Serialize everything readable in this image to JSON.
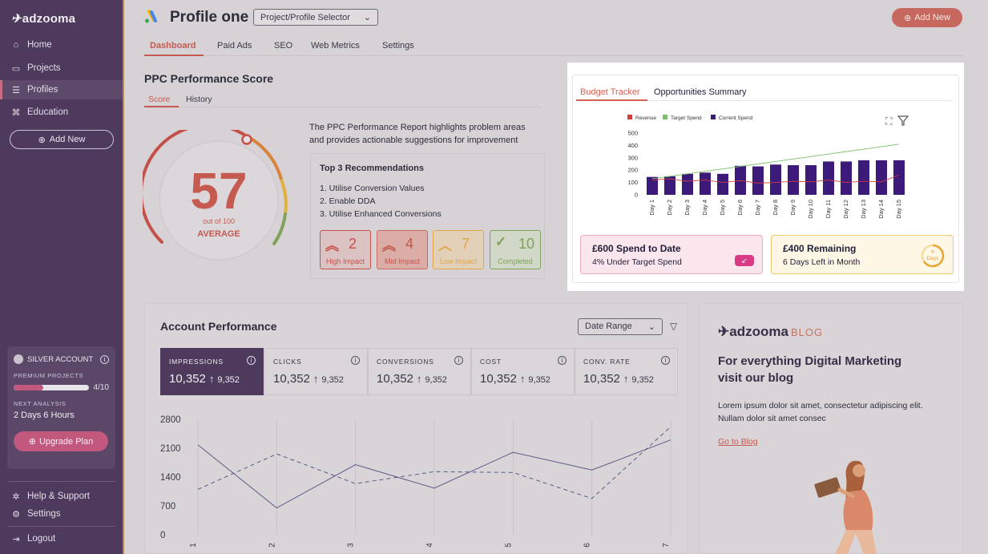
{
  "sidebar": {
    "logo": "adzooma",
    "nav": [
      {
        "label": "Home",
        "icon": "home-icon"
      },
      {
        "label": "Projects",
        "icon": "folder-icon"
      },
      {
        "label": "Profiles",
        "icon": "list-icon"
      },
      {
        "label": "Education",
        "icon": "graduation-cap-icon"
      }
    ],
    "add_new": "Add New",
    "account": {
      "tier": "SILVER ACCOUNT",
      "premium_label": "PREMIUM PROJECTS",
      "premium_used": 4,
      "premium_total": 10,
      "premium_text": "4/10",
      "next_label": "NEXT ANALYSIS",
      "next_value": "2 Days 6 Hours",
      "upgrade": "Upgrade Plan"
    },
    "help": "Help & Support",
    "settings": "Settings",
    "logout": "Logout"
  },
  "header": {
    "title": "Profile one",
    "selector": "Project/Profile Selector",
    "add_new": "Add New"
  },
  "tabs": [
    "Dashboard",
    "Paid Ads",
    "SEO",
    "Web Metrics",
    "Settings"
  ],
  "ppc": {
    "title": "PPC Performance Score",
    "subtabs": [
      "Score",
      "History"
    ],
    "score": "57",
    "out_of": "out of 100",
    "grade": "AVERAGE",
    "score_value": 57,
    "description": "The PPC Performance Report highlights problem areas and provides actionable suggestions for improvement",
    "rec_title": "Top 3 Recommendations",
    "recommendations": [
      "1. Utilise Conversion Values",
      "2. Enable DDA",
      "3. Utilise Enhanced Conversions"
    ],
    "impacts": [
      {
        "count": "2",
        "label": "High Impact",
        "color": "#c8504a"
      },
      {
        "count": "4",
        "label": "Mid Impact",
        "color": "#c86a5e"
      },
      {
        "count": "7",
        "label": "Low Impact",
        "color": "#e0a64a"
      },
      {
        "count": "10",
        "label": "Completed",
        "color": "#7ea25a"
      }
    ]
  },
  "budget": {
    "tabs": [
      "Budget Tracker",
      "Opportunities Summary"
    ],
    "legend": [
      "Revenue",
      "Target Spend",
      "Current Spend"
    ],
    "spend_title": "£600 Spend to Date",
    "spend_sub": "4% Under Target Spend",
    "remaining_title": "£400 Remaining",
    "remaining_sub": "6 Days Left in Month",
    "days_num": "6",
    "days_label": "Days"
  },
  "chart_data": [
    {
      "type": "bar",
      "categories": [
        "Day 1",
        "Day 2",
        "Day 3",
        "Day 4",
        "Day 5",
        "Day 6",
        "Day 7",
        "Day 8",
        "Day 9",
        "Day 10",
        "Day 11",
        "Day 12",
        "Day 13",
        "Day 14",
        "Day 15"
      ],
      "series": [
        {
          "name": "Current Spend",
          "type": "bar",
          "color": "#3b1a7a",
          "values": [
            145,
            150,
            170,
            180,
            170,
            235,
            230,
            245,
            240,
            240,
            270,
            270,
            280,
            280,
            280
          ]
        },
        {
          "name": "Revenue",
          "type": "line",
          "color": "#d23c3c",
          "values": [
            120,
            130,
            110,
            120,
            100,
            115,
            95,
            100,
            110,
            105,
            120,
            100,
            110,
            105,
            160
          ]
        },
        {
          "name": "Target Spend",
          "type": "line",
          "color": "#7ac06a",
          "values": [
            130,
            150,
            170,
            190,
            210,
            230,
            250,
            270,
            290,
            310,
            330,
            350,
            370,
            390,
            410
          ]
        }
      ],
      "yticks": [
        0,
        100,
        200,
        300,
        400,
        500
      ],
      "ylim": [
        0,
        500
      ]
    },
    {
      "type": "line",
      "categories": [
        "1",
        "2",
        "3",
        "4",
        "5",
        "6",
        "7"
      ],
      "series": [
        {
          "style": "solid",
          "values": [
            2180,
            650,
            1700,
            1130,
            2000,
            1570,
            2300
          ]
        },
        {
          "style": "dashed",
          "values": [
            1100,
            1960,
            1240,
            1530,
            1510,
            880,
            2620
          ]
        }
      ],
      "yticks": [
        0,
        700,
        1400,
        2100,
        2800
      ],
      "ylim": [
        0,
        2800
      ]
    }
  ],
  "account_performance": {
    "title": "Account Performance",
    "date_range": "Date Range",
    "metrics": [
      {
        "label": "IMPRESSIONS",
        "value": "10,352",
        "prev": "9,352"
      },
      {
        "label": "CLICKS",
        "value": "10,352",
        "prev": "9,352"
      },
      {
        "label": "CONVERSIONS",
        "value": "10,352",
        "prev": "9,352"
      },
      {
        "label": "COST",
        "value": "10,352",
        "prev": "9,352"
      },
      {
        "label": "CONV. RATE",
        "value": "10,352",
        "prev": "9,352"
      }
    ]
  },
  "blog": {
    "logo": "adzooma",
    "logo_suffix": "BLOG",
    "heading": "For everything Digital Marketing visit our blog",
    "text": "Lorem ipsum dolor sit amet, consectetur adipiscing elit. Nullam dolor sit amet consec",
    "link": "Go to Blog"
  }
}
